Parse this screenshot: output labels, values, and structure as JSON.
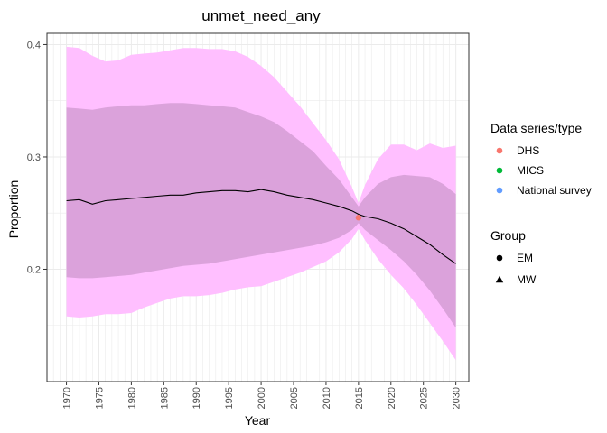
{
  "chart_data": {
    "type": "line",
    "title": "unmet_need_any",
    "xlabel": "Year",
    "ylabel": "Proportion",
    "xlim": [
      1967,
      2032
    ],
    "ylim": [
      0.1,
      0.41
    ],
    "x_ticks": [
      1970,
      1975,
      1980,
      1985,
      1990,
      1995,
      2000,
      2005,
      2010,
      2015,
      2020,
      2025,
      2030
    ],
    "y_ticks": [
      0.2,
      0.3,
      0.4
    ],
    "y_tick_labels": [
      "0.2",
      "0.3",
      "0.4"
    ],
    "grid": true,
    "colors": {
      "outer_band": "#ffbfff",
      "inner_band": "#dba2db",
      "median_line": "#000000",
      "grid": "#ebebeb",
      "border": "#333333",
      "dhs": "#f8766d",
      "mics": "#00ba38",
      "national_survey": "#619cff"
    },
    "series": [
      {
        "x": [
          1970,
          1972,
          1974,
          1976,
          1978,
          1980,
          1982,
          1984,
          1986,
          1988,
          1990,
          1992,
          1994,
          1996,
          1998,
          2000,
          2002,
          2004,
          2006,
          2008,
          2010,
          2012,
          2014,
          2015,
          2016,
          2018,
          2020,
          2022,
          2024,
          2026,
          2028,
          2030
        ],
        "median": [
          0.261,
          0.262,
          0.258,
          0.261,
          0.262,
          0.263,
          0.264,
          0.265,
          0.266,
          0.266,
          0.268,
          0.269,
          0.27,
          0.27,
          0.269,
          0.271,
          0.269,
          0.266,
          0.264,
          0.262,
          0.259,
          0.256,
          0.252,
          0.249,
          0.247,
          0.245,
          0.241,
          0.236,
          0.229,
          0.222,
          0.213,
          0.205
        ],
        "lower80": [
          0.193,
          0.192,
          0.192,
          0.193,
          0.194,
          0.195,
          0.197,
          0.199,
          0.201,
          0.203,
          0.204,
          0.205,
          0.207,
          0.209,
          0.211,
          0.213,
          0.215,
          0.217,
          0.219,
          0.221,
          0.224,
          0.228,
          0.235,
          0.241,
          0.235,
          0.226,
          0.217,
          0.207,
          0.195,
          0.181,
          0.165,
          0.148
        ],
        "upper80": [
          0.344,
          0.343,
          0.342,
          0.344,
          0.345,
          0.346,
          0.346,
          0.347,
          0.348,
          0.348,
          0.347,
          0.346,
          0.345,
          0.344,
          0.34,
          0.336,
          0.331,
          0.323,
          0.314,
          0.305,
          0.292,
          0.28,
          0.264,
          0.256,
          0.264,
          0.276,
          0.282,
          0.284,
          0.283,
          0.282,
          0.276,
          0.267
        ],
        "lower95": [
          0.158,
          0.157,
          0.158,
          0.16,
          0.16,
          0.161,
          0.166,
          0.17,
          0.174,
          0.176,
          0.176,
          0.177,
          0.179,
          0.182,
          0.184,
          0.185,
          0.189,
          0.193,
          0.197,
          0.202,
          0.207,
          0.215,
          0.227,
          0.236,
          0.226,
          0.209,
          0.195,
          0.183,
          0.168,
          0.152,
          0.136,
          0.119
        ],
        "upper95": [
          0.398,
          0.397,
          0.39,
          0.385,
          0.386,
          0.391,
          0.392,
          0.393,
          0.395,
          0.397,
          0.397,
          0.396,
          0.396,
          0.394,
          0.389,
          0.381,
          0.371,
          0.358,
          0.345,
          0.33,
          0.315,
          0.298,
          0.273,
          0.259,
          0.275,
          0.298,
          0.311,
          0.311,
          0.306,
          0.312,
          0.308,
          0.31
        ]
      }
    ],
    "points": [
      {
        "x": 2015,
        "y": 0.246,
        "series": "DHS",
        "group": "EM"
      }
    ],
    "legend": {
      "position": "right",
      "data_series_title": "Data series/type",
      "data_series": [
        {
          "label": "DHS",
          "color": "#f8766d"
        },
        {
          "label": "MICS",
          "color": "#00ba38"
        },
        {
          "label": "National survey",
          "color": "#619cff"
        }
      ],
      "group_title": "Group",
      "groups": [
        {
          "label": "EM",
          "shape": "circle"
        },
        {
          "label": "MW",
          "shape": "triangle"
        }
      ]
    }
  }
}
